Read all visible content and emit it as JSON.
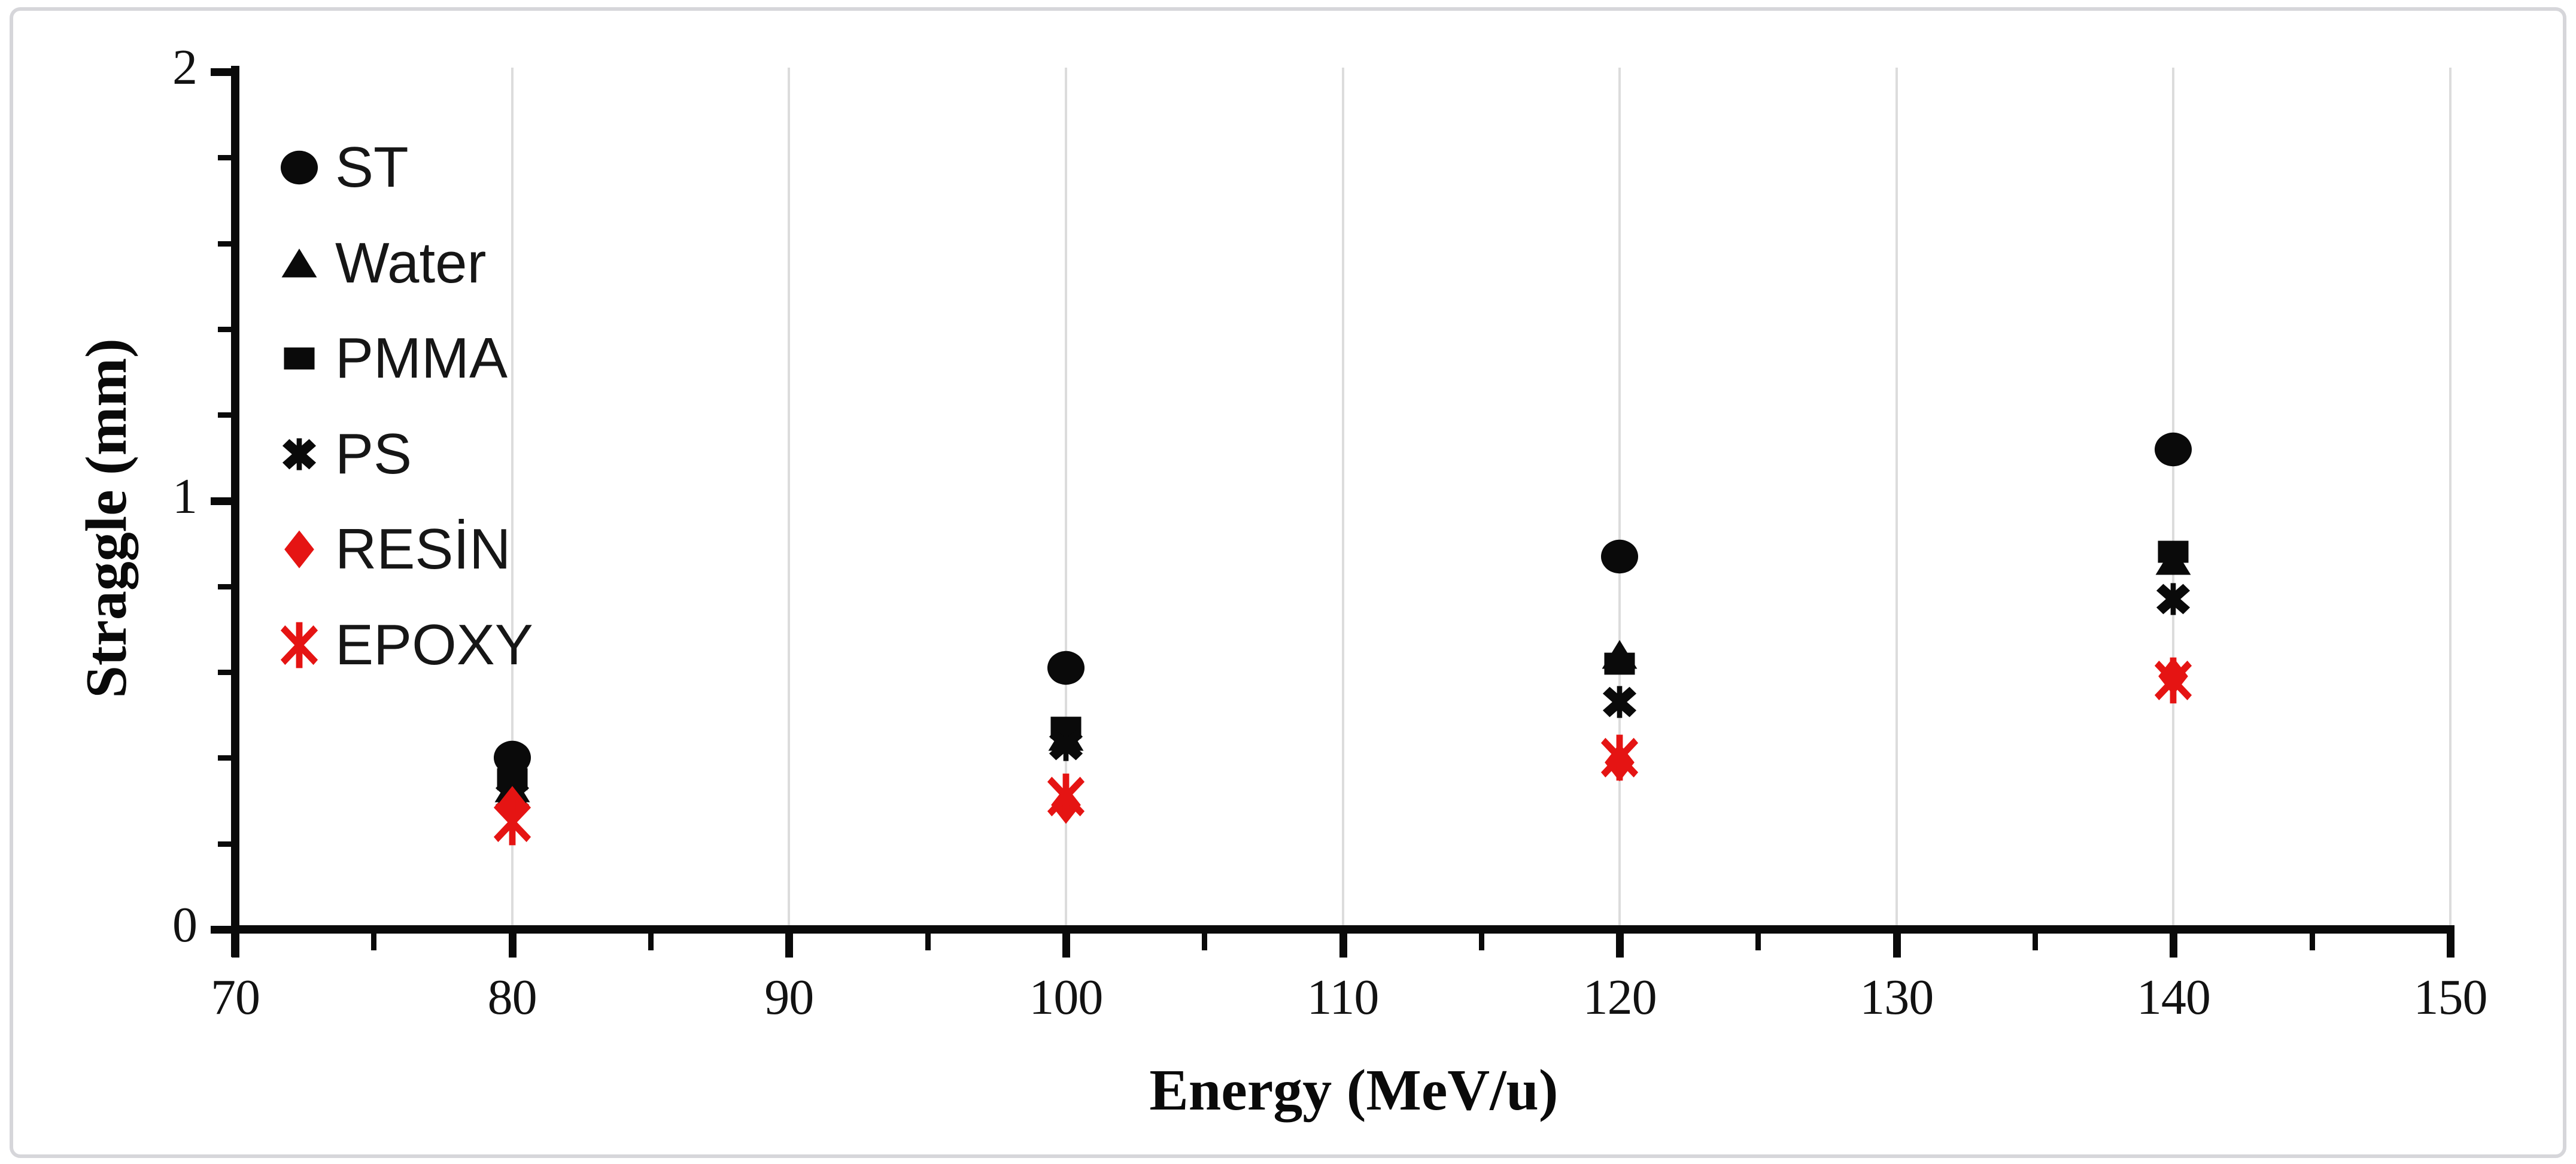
{
  "chart_data": {
    "type": "scatter",
    "title": "",
    "xlabel": "Energy (MeV/u)",
    "ylabel": "Straggle (mm)",
    "xlim": [
      70,
      150
    ],
    "ylim": [
      0,
      2
    ],
    "x_major_ticks": [
      70,
      80,
      90,
      100,
      110,
      120,
      130,
      140,
      150
    ],
    "x_tick_labels": [
      "70",
      "80",
      "90",
      "100",
      "110",
      "120",
      "130",
      "140",
      "150"
    ],
    "x_minor_ticks": [
      75,
      85,
      95,
      105,
      115,
      125,
      135,
      145
    ],
    "y_major_ticks": [
      0,
      1,
      2
    ],
    "y_tick_labels": [
      "0",
      "1",
      "2"
    ],
    "y_minor_tick_step": 0.2,
    "grid": "vertical-gridlines-only",
    "gridline_x_values": [
      80,
      90,
      100,
      110,
      120,
      130,
      140,
      150
    ],
    "x": [
      80,
      100,
      120,
      140
    ],
    "series": [
      {
        "name": "ST",
        "marker": "circle",
        "color": "#0a0a0a",
        "values": [
          0.4,
          0.61,
          0.87,
          1.12
        ]
      },
      {
        "name": "Water",
        "marker": "triangle",
        "color": "#0a0a0a",
        "values": [
          0.33,
          0.45,
          0.64,
          0.86
        ]
      },
      {
        "name": "PMMA",
        "marker": "square",
        "color": "#0a0a0a",
        "values": [
          0.35,
          0.47,
          0.62,
          0.88
        ]
      },
      {
        "name": "PS",
        "marker": "x-cross",
        "color": "#0a0a0a",
        "values": [
          0.31,
          0.43,
          0.53,
          0.77
        ]
      },
      {
        "name": "RESİN",
        "marker": "diamond",
        "color": "#e51413",
        "values": [
          0.29,
          0.29,
          0.39,
          0.59
        ]
      },
      {
        "name": "EPOXY",
        "marker": "asterisk",
        "color": "#e51413",
        "values": [
          0.25,
          0.31,
          0.4,
          0.58
        ]
      }
    ],
    "legend": {
      "position": "upper-left-inside",
      "entries": [
        "ST",
        "Water",
        "PMMA",
        "PS",
        "RESİN",
        "EPOXY"
      ]
    },
    "colors": {
      "black": "#0a0a0a",
      "red": "#e51413",
      "grid": "#dcdcdc",
      "axis": "#0a0a0a",
      "frame": "#d6d6da",
      "background": "#ffffff"
    }
  }
}
